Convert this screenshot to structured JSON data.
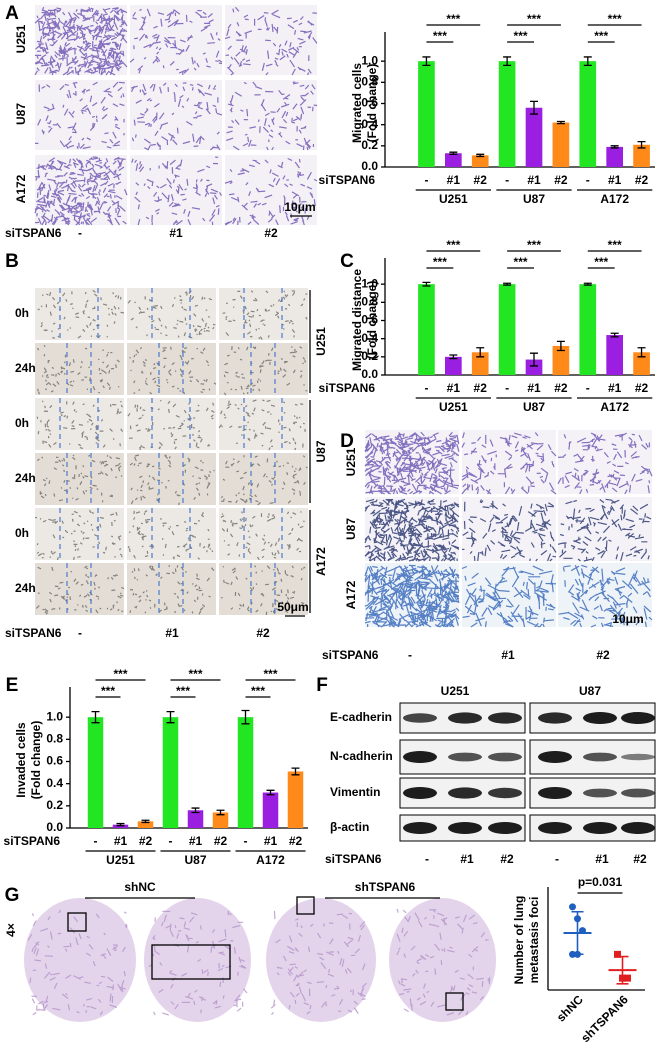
{
  "chart_data": [
    {
      "type": "bar",
      "label": "A",
      "y_label": [
        "Migrated cells",
        "(Fold change)"
      ],
      "x_label": "siTSPAN6",
      "categories": [
        "-",
        "#1",
        "#2",
        "-",
        "#1",
        "#2",
        "-",
        "#1",
        "#2"
      ],
      "groups": [
        "U251",
        "U87",
        "A172"
      ],
      "values": [
        1.0,
        0.13,
        0.11,
        1.0,
        0.56,
        0.42,
        1.0,
        0.19,
        0.21
      ],
      "errors": [
        0.04,
        0.01,
        0.01,
        0.04,
        0.06,
        0.01,
        0.04,
        0.01,
        0.03
      ],
      "colors": [
        "#22e622",
        "#9b1fe0",
        "#ff8a1a"
      ],
      "ylim": [
        0,
        1.2
      ],
      "yticks": [
        {
          "value": 0,
          "label": "0.0"
        },
        {
          "value": 0.2,
          "label": "0.2"
        },
        {
          "value": 0.4,
          "label": "0.4"
        },
        {
          "value": 0.6,
          "label": "0.6"
        },
        {
          "value": 0.8,
          "label": "0.8"
        },
        {
          "value": 1.0,
          "label": "1.0"
        }
      ],
      "annotations": [
        "***",
        "***",
        "***",
        "***",
        "***",
        "***"
      ]
    },
    {
      "type": "bar",
      "label": "C",
      "y_label": [
        "Migrated distance",
        "(Fold change)"
      ],
      "x_label": "siTSPAN6",
      "categories": [
        "-",
        "#1",
        "#2",
        "-",
        "#1",
        "#2",
        "-",
        "#1",
        "#2"
      ],
      "groups": [
        "U251",
        "U87",
        "A172"
      ],
      "values": [
        1.0,
        0.2,
        0.25,
        1.0,
        0.17,
        0.32,
        1.0,
        0.44,
        0.25
      ],
      "errors": [
        0.02,
        0.02,
        0.05,
        0.01,
        0.07,
        0.05,
        0.01,
        0.02,
        0.05
      ],
      "colors": [
        "#22e622",
        "#9b1fe0",
        "#ff8a1a"
      ],
      "ylim": [
        0,
        1.2
      ],
      "yticks": [
        {
          "value": 0,
          "label": "0.0"
        },
        {
          "value": 0.2,
          "label": "0.2"
        },
        {
          "value": 0.4,
          "label": "0.4"
        },
        {
          "value": 0.6,
          "label": "0.6"
        },
        {
          "value": 0.8,
          "label": "0.8"
        },
        {
          "value": 1.0,
          "label": "1.0"
        }
      ],
      "annotations": [
        "***",
        "***",
        "***",
        "***",
        "***",
        "***"
      ]
    },
    {
      "type": "bar",
      "label": "E",
      "y_label": [
        "Invaded cells",
        "(Fold change)"
      ],
      "x_label": "siTSPAN6",
      "categories": [
        "-",
        "#1",
        "#2",
        "-",
        "#1",
        "#2",
        "-",
        "#1",
        "#2"
      ],
      "groups": [
        "U251",
        "U87",
        "A172"
      ],
      "values": [
        1.0,
        0.03,
        0.06,
        1.0,
        0.16,
        0.14,
        1.0,
        0.32,
        0.51
      ],
      "errors": [
        0.05,
        0.01,
        0.01,
        0.05,
        0.02,
        0.02,
        0.06,
        0.02,
        0.03
      ],
      "colors": [
        "#22e622",
        "#9b1fe0",
        "#ff8a1a"
      ],
      "ylim": [
        0,
        1.2
      ],
      "yticks": [
        {
          "value": 0,
          "label": "0.0"
        },
        {
          "value": 0.2,
          "label": "0.2"
        },
        {
          "value": 0.4,
          "label": "0.4"
        },
        {
          "value": 0.6,
          "label": "0.6"
        },
        {
          "value": 0.8,
          "label": "0.8"
        },
        {
          "value": 1.0,
          "label": "1.0"
        }
      ],
      "annotations": [
        "***",
        "***",
        "***",
        "***",
        "***",
        "***"
      ]
    },
    {
      "type": "strip",
      "label": "G",
      "y_label": [
        "Number of lung",
        "metastasis foci"
      ],
      "categories": [
        "shNC",
        "shTSPAN6"
      ],
      "values": [
        [
          7,
          6,
          5,
          3,
          3
        ],
        [
          3,
          1,
          1
        ]
      ],
      "means": [
        4.8,
        1.67
      ],
      "sd": [
        1.79,
        1.15
      ],
      "colors": [
        "#1f5fbf",
        "#e02020"
      ],
      "ylim": [
        0,
        8
      ],
      "annotation": "p=0.031"
    }
  ],
  "panel_a": {
    "rows": [
      "U251",
      "U87",
      "A172"
    ],
    "treatment": "siTSPAN6",
    "columns": [
      "-",
      "#1",
      "#2"
    ],
    "scale_bar": "10μm"
  },
  "panel_b": {
    "label": "B",
    "rows": [
      "0h",
      "24h",
      "0h",
      "24h",
      "0h",
      "24h"
    ],
    "cell_lines": [
      "U251",
      "U87",
      "A172"
    ],
    "treatment": "siTSPAN6",
    "columns": [
      "-",
      "#1",
      "#2"
    ],
    "scale_bar": "50μm"
  },
  "panel_d": {
    "label": "D",
    "rows": [
      "U251",
      "U87",
      "A172"
    ],
    "treatment": "siTSPAN6",
    "columns": [
      "-",
      "#1",
      "#2"
    ],
    "scale_bar": "10μm"
  },
  "panel_f": {
    "label": "F",
    "cell_lines": [
      "U251",
      "U87"
    ],
    "proteins": [
      "E-cadherin",
      "N-cadherin",
      "Vimentin",
      "β-actin"
    ],
    "treatment": "siTSPAN6",
    "columns": [
      "-",
      "#1",
      "#2",
      "-",
      "#1",
      "#2"
    ]
  },
  "panel_g": {
    "magnification": "4×",
    "groups": [
      "shNC",
      "shTSPAN6"
    ]
  }
}
